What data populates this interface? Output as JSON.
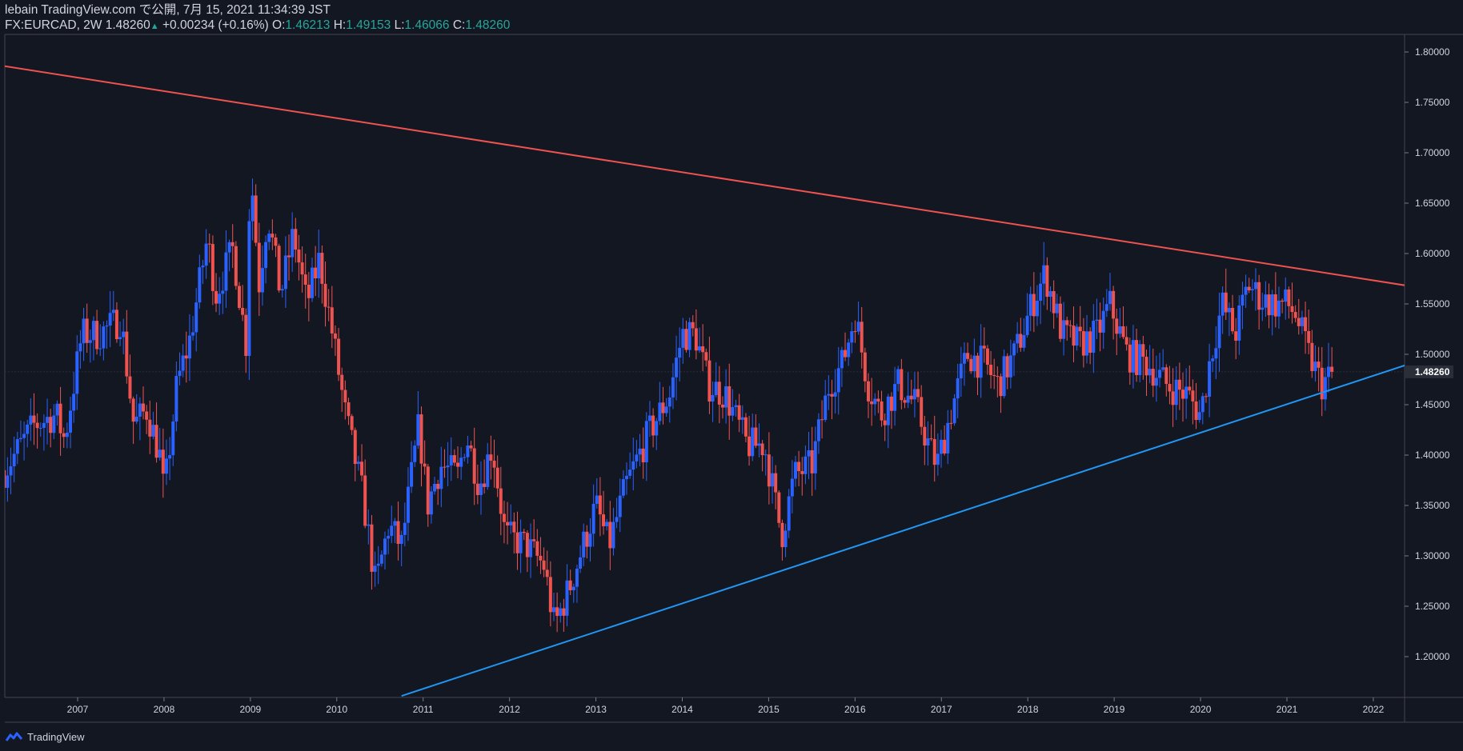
{
  "header": {
    "publisher": "lebain TradingView.com で公開, 7月 15, 2021 11:34:39 JST",
    "symbol": "FX:EURCAD, 2W",
    "price": "1.48260",
    "change": "+0.00234 (+0.16%)",
    "o_label": "O:",
    "o_value": "1.46213",
    "h_label": "H:",
    "h_value": "1.49153",
    "l_label": "L:",
    "l_value": "1.46066",
    "c_label": "C:",
    "c_value": "1.48260"
  },
  "footer": {
    "brand": "TradingView",
    "logo_icon": "tradingview-logo-icon"
  },
  "colors": {
    "background": "#131722",
    "up": "#2962ff",
    "down": "#ef5350",
    "resistance": "#ef5350",
    "support": "#2196f3",
    "text": "#d1d4dc",
    "ohlc_value": "#26a69a"
  },
  "chart_data": {
    "type": "candlestick",
    "symbol": "FX:EURCAD",
    "interval": "2W",
    "x_ticks": [
      "2007",
      "2008",
      "2009",
      "2010",
      "2011",
      "2012",
      "2013",
      "2014",
      "2015",
      "2016",
      "2017",
      "2018",
      "2019",
      "2020",
      "2021",
      "2022"
    ],
    "y_ticks": [
      "1.80000",
      "1.75000",
      "1.70000",
      "1.65000",
      "1.60000",
      "1.55000",
      "1.50000",
      "1.45000",
      "1.40000",
      "1.35000",
      "1.30000",
      "1.25000",
      "1.20000"
    ],
    "ylim": [
      1.16,
      1.81
    ],
    "last_price_label": "1.48260",
    "last_price": 1.4826,
    "close_path": [
      [
        2006.15,
        1.385
      ],
      [
        2006.5,
        1.43
      ],
      [
        2006.75,
        1.44
      ],
      [
        2006.85,
        1.415
      ],
      [
        2007.05,
        1.52
      ],
      [
        2007.25,
        1.52
      ],
      [
        2007.5,
        1.535
      ],
      [
        2007.65,
        1.43
      ],
      [
        2007.8,
        1.445
      ],
      [
        2007.95,
        1.4
      ],
      [
        2008.0,
        1.36
      ],
      [
        2008.15,
        1.47
      ],
      [
        2008.3,
        1.515
      ],
      [
        2008.5,
        1.615
      ],
      [
        2008.6,
        1.56
      ],
      [
        2008.8,
        1.605
      ],
      [
        2008.95,
        1.51
      ],
      [
        2009.0,
        1.69
      ],
      [
        2009.1,
        1.57
      ],
      [
        2009.2,
        1.64
      ],
      [
        2009.35,
        1.56
      ],
      [
        2009.5,
        1.62
      ],
      [
        2009.65,
        1.55
      ],
      [
        2009.8,
        1.595
      ],
      [
        2009.95,
        1.52
      ],
      [
        2010.1,
        1.44
      ],
      [
        2010.3,
        1.36
      ],
      [
        2010.45,
        1.27
      ],
      [
        2010.6,
        1.33
      ],
      [
        2010.75,
        1.31
      ],
      [
        2010.95,
        1.43
      ],
      [
        2011.05,
        1.35
      ],
      [
        2011.2,
        1.39
      ],
      [
        2011.4,
        1.38
      ],
      [
        2011.5,
        1.42
      ],
      [
        2011.65,
        1.37
      ],
      [
        2011.8,
        1.41
      ],
      [
        2011.95,
        1.32
      ],
      [
        2012.2,
        1.31
      ],
      [
        2012.4,
        1.29
      ],
      [
        2012.52,
        1.23
      ],
      [
        2012.7,
        1.27
      ],
      [
        2012.85,
        1.31
      ],
      [
        2013.0,
        1.35
      ],
      [
        2013.15,
        1.31
      ],
      [
        2013.35,
        1.37
      ],
      [
        2013.6,
        1.42
      ],
      [
        2013.85,
        1.46
      ],
      [
        2014.0,
        1.52
      ],
      [
        2014.15,
        1.52
      ],
      [
        2014.3,
        1.47
      ],
      [
        2014.5,
        1.46
      ],
      [
        2014.75,
        1.41
      ],
      [
        2014.95,
        1.41
      ],
      [
        2015.15,
        1.32
      ],
      [
        2015.3,
        1.38
      ],
      [
        2015.5,
        1.39
      ],
      [
        2015.7,
        1.47
      ],
      [
        2015.85,
        1.49
      ],
      [
        2016.0,
        1.54
      ],
      [
        2016.15,
        1.47
      ],
      [
        2016.3,
        1.44
      ],
      [
        2016.5,
        1.47
      ],
      [
        2016.7,
        1.45
      ],
      [
        2016.85,
        1.41
      ],
      [
        2016.95,
        1.39
      ],
      [
        2017.1,
        1.44
      ],
      [
        2017.3,
        1.5
      ],
      [
        2017.5,
        1.49
      ],
      [
        2017.65,
        1.47
      ],
      [
        2017.85,
        1.5
      ],
      [
        2018.05,
        1.55
      ],
      [
        2018.2,
        1.58
      ],
      [
        2018.4,
        1.52
      ],
      [
        2018.6,
        1.51
      ],
      [
        2018.8,
        1.52
      ],
      [
        2018.95,
        1.55
      ],
      [
        2019.15,
        1.5
      ],
      [
        2019.4,
        1.49
      ],
      [
        2019.6,
        1.47
      ],
      [
        2019.85,
        1.46
      ],
      [
        2020.0,
        1.44
      ],
      [
        2020.1,
        1.49
      ],
      [
        2020.25,
        1.55
      ],
      [
        2020.4,
        1.52
      ],
      [
        2020.55,
        1.57
      ],
      [
        2020.7,
        1.555
      ],
      [
        2020.85,
        1.55
      ],
      [
        2021.0,
        1.55
      ],
      [
        2021.1,
        1.54
      ],
      [
        2021.25,
        1.5
      ],
      [
        2021.4,
        1.47
      ],
      [
        2021.55,
        1.4826
      ]
    ],
    "trendlines": [
      {
        "name": "",
        "color": "#ef5350",
        "points": [
          [
            2006.0,
            1.788
          ],
          [
            2022.4,
            1.568
          ]
        ]
      },
      {
        "name": "",
        "color": "#2196f3",
        "points": [
          [
            2010.75,
            1.161
          ],
          [
            2022.4,
            1.49
          ]
        ]
      }
    ],
    "grid": false,
    "xlabel": "",
    "ylabel": ""
  }
}
